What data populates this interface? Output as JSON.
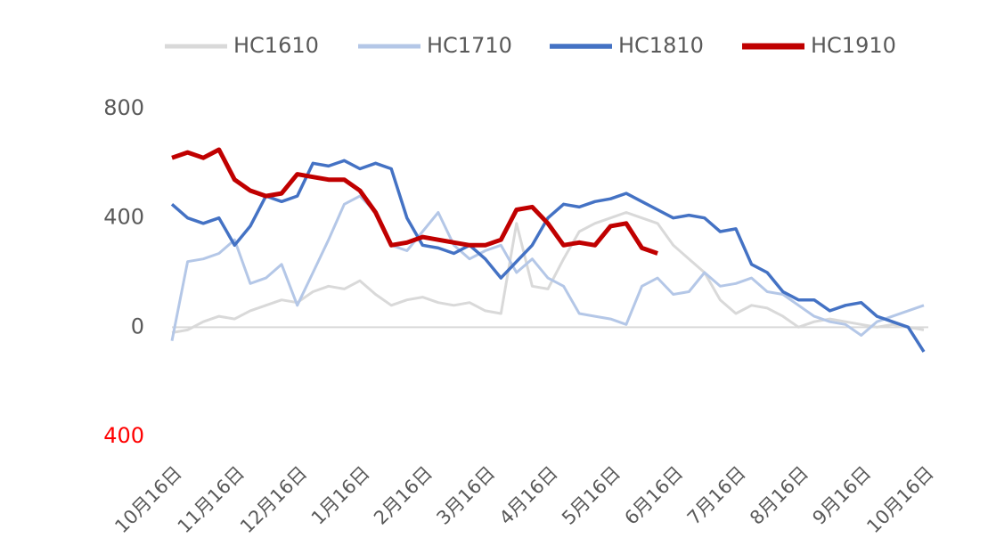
{
  "chart_data": {
    "type": "line",
    "categories": [
      "10月16日",
      null,
      null,
      null,
      "11月16日",
      null,
      null,
      null,
      "12月16日",
      null,
      null,
      null,
      "1月16日",
      null,
      null,
      null,
      "2月16日",
      null,
      null,
      null,
      "3月16日",
      null,
      null,
      null,
      "4月16日",
      null,
      null,
      null,
      "5月16日",
      null,
      null,
      null,
      "6月16日",
      null,
      null,
      null,
      "7月16日",
      null,
      null,
      null,
      "8月16日",
      null,
      null,
      null,
      "9月16日",
      null,
      null,
      null,
      "10月16日"
    ],
    "series": [
      {
        "name": "HC1610",
        "color": "#d9d9d9",
        "values": [
          -20,
          -10,
          20,
          40,
          30,
          60,
          80,
          100,
          90,
          130,
          150,
          140,
          170,
          120,
          80,
          100,
          110,
          90,
          80,
          90,
          60,
          50,
          380,
          150,
          140,
          250,
          350,
          380,
          400,
          420,
          400,
          380,
          300,
          250,
          200,
          100,
          50,
          80,
          70,
          40,
          0,
          20,
          30,
          20,
          10,
          0,
          10,
          0,
          -10
        ]
      },
      {
        "name": "HC1710",
        "color": "#b4c7e7",
        "values": [
          -50,
          240,
          250,
          270,
          320,
          160,
          180,
          230,
          80,
          200,
          320,
          450,
          480,
          420,
          300,
          280,
          350,
          420,
          300,
          250,
          280,
          300,
          200,
          250,
          180,
          150,
          50,
          40,
          30,
          10,
          150,
          180,
          120,
          130,
          200,
          150,
          160,
          180,
          130,
          120,
          80,
          40,
          20,
          10,
          -30,
          20,
          40,
          60,
          80
        ]
      },
      {
        "name": "HC1810",
        "color": "#4472c4",
        "values": [
          450,
          400,
          380,
          400,
          300,
          370,
          480,
          460,
          480,
          600,
          590,
          610,
          580,
          600,
          580,
          400,
          300,
          290,
          270,
          300,
          250,
          180,
          240,
          300,
          400,
          450,
          440,
          460,
          470,
          490,
          460,
          430,
          400,
          410,
          400,
          350,
          360,
          230,
          200,
          130,
          100,
          100,
          60,
          80,
          90,
          40,
          20,
          0,
          -90
        ]
      },
      {
        "name": "HC1910",
        "color": "#c00000",
        "values": [
          620,
          640,
          620,
          650,
          540,
          500,
          480,
          490,
          560,
          550,
          540,
          540,
          500,
          420,
          300,
          310,
          330,
          320,
          310,
          300,
          300,
          320,
          430,
          440,
          380,
          300,
          310,
          300,
          370,
          380,
          290,
          270,
          null,
          null,
          null,
          null,
          null,
          null,
          null,
          null,
          null,
          null,
          null,
          null,
          null,
          null,
          null,
          null,
          null
        ]
      }
    ],
    "ylim": [
      -400,
      800
    ],
    "yticks": [
      {
        "value": -400,
        "label": "400"
      },
      0,
      400,
      800
    ],
    "ytick_label_colors": [
      "#ff0000",
      "#595959",
      "#595959",
      "#595959"
    ],
    "legend": "top"
  }
}
